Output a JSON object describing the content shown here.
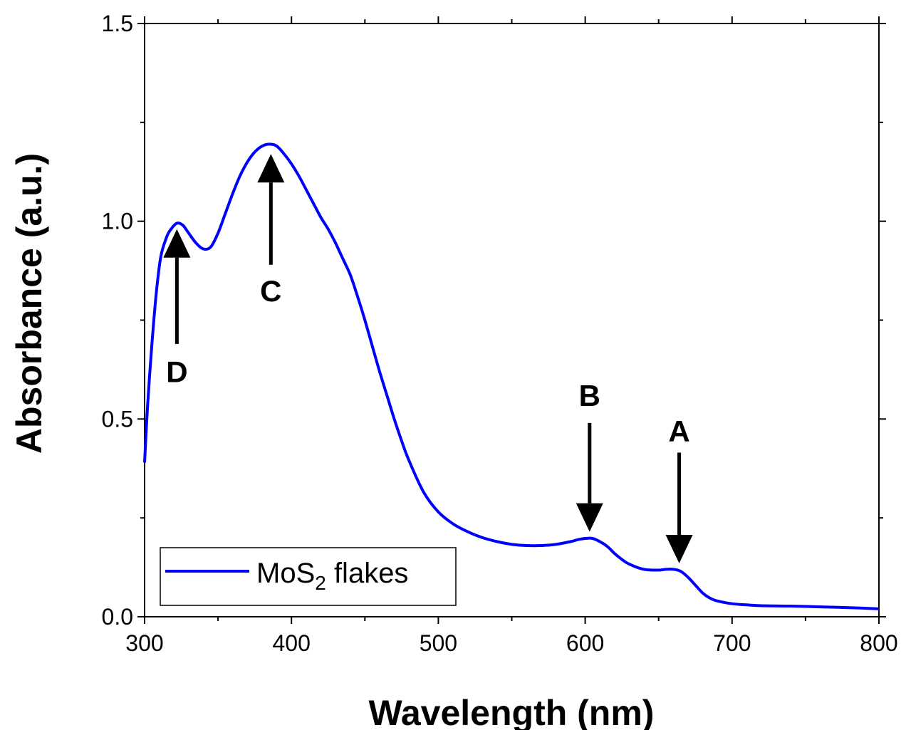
{
  "chart_data": {
    "type": "line",
    "xlabel": "Wavelength (nm)",
    "ylabel": "Absorbance (a.u.)",
    "xlim": [
      300,
      800
    ],
    "ylim": [
      0.0,
      1.5
    ],
    "xticks": [
      300,
      400,
      500,
      600,
      700,
      800
    ],
    "yticks": [
      0.0,
      0.5,
      1.0,
      1.5
    ],
    "xtick_labels": [
      "300",
      "400",
      "500",
      "600",
      "700",
      "800"
    ],
    "ytick_labels": [
      "0.0",
      "0.5",
      "1.0",
      "1.5"
    ],
    "grid": false,
    "legend_position": "bottom-left",
    "series": [
      {
        "name": "MoS2 flakes",
        "legend_main": "MoS",
        "legend_sub": "2",
        "legend_tail": " flakes",
        "color": "#0000ff",
        "x": [
          300,
          302,
          305,
          308,
          311,
          315,
          318,
          322,
          326,
          330,
          335,
          340,
          345,
          350,
          355,
          360,
          365,
          370,
          375,
          380,
          385,
          390,
          395,
          400,
          405,
          410,
          415,
          420,
          425,
          430,
          435,
          440,
          445,
          450,
          455,
          460,
          465,
          470,
          475,
          480,
          490,
          500,
          510,
          520,
          530,
          540,
          550,
          560,
          570,
          580,
          590,
          595,
          600,
          605,
          610,
          615,
          620,
          625,
          630,
          640,
          650,
          655,
          660,
          665,
          670,
          675,
          680,
          685,
          690,
          700,
          710,
          720,
          740,
          760,
          780,
          800
        ],
        "y": [
          0.39,
          0.53,
          0.69,
          0.82,
          0.91,
          0.96,
          0.98,
          0.995,
          0.99,
          0.97,
          0.945,
          0.93,
          0.935,
          0.97,
          1.02,
          1.07,
          1.115,
          1.15,
          1.175,
          1.19,
          1.195,
          1.19,
          1.17,
          1.145,
          1.115,
          1.08,
          1.045,
          1.01,
          0.98,
          0.945,
          0.905,
          0.865,
          0.81,
          0.75,
          0.685,
          0.62,
          0.56,
          0.5,
          0.445,
          0.395,
          0.315,
          0.265,
          0.235,
          0.215,
          0.2,
          0.19,
          0.183,
          0.18,
          0.18,
          0.183,
          0.19,
          0.195,
          0.198,
          0.198,
          0.19,
          0.178,
          0.16,
          0.145,
          0.133,
          0.12,
          0.118,
          0.12,
          0.12,
          0.115,
          0.1,
          0.08,
          0.06,
          0.047,
          0.04,
          0.033,
          0.03,
          0.028,
          0.027,
          0.025,
          0.023,
          0.02
        ]
      }
    ],
    "annotations": [
      {
        "label": "D",
        "x": 322,
        "y_tail": 0.69,
        "y_head": 0.98,
        "label_y": 0.62
      },
      {
        "label": "C",
        "x": 386,
        "y_tail": 0.89,
        "y_head": 1.17,
        "label_y": 0.825
      },
      {
        "label": "B",
        "x": 603,
        "y_tail": 0.49,
        "y_head": 0.215,
        "label_y": 0.56
      },
      {
        "label": "A",
        "x": 664,
        "y_tail": 0.415,
        "y_head": 0.135,
        "label_y": 0.47
      }
    ]
  }
}
